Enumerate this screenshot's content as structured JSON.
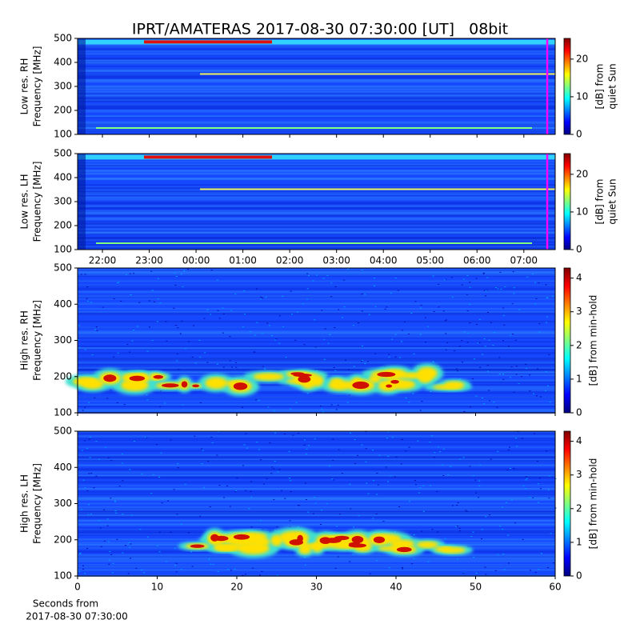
{
  "title": "IPRT/AMATERAS 2017-08-30 07:30:00 [UT]   08bit",
  "chart_data": [
    {
      "type": "heatmap",
      "ylabel": [
        "Low res. RH",
        "Frequency [MHz]"
      ],
      "xlim": [
        21.47,
        31.67
      ],
      "xticks": [
        22,
        23,
        24,
        25,
        26,
        27,
        28,
        29,
        30,
        31
      ],
      "show_xticklabels": false,
      "ylim": [
        100,
        500
      ],
      "yticks": [
        100,
        200,
        300,
        400,
        500
      ],
      "clim": [
        0,
        25.5
      ],
      "cticks": [
        0,
        10,
        20
      ],
      "clabel": [
        "[dB] from",
        "quiet Sun"
      ],
      "vline": {
        "x": 31.5,
        "color": "#ff00ff"
      }
    },
    {
      "type": "heatmap",
      "ylabel": [
        "Low res. LH",
        "Frequency [MHz]"
      ],
      "xlim": [
        21.47,
        31.67
      ],
      "xticks": [
        {
          "value": 22,
          "label": "22:00"
        },
        {
          "value": 23,
          "label": "23:00"
        },
        {
          "value": 24,
          "label": "00:00"
        },
        {
          "value": 25,
          "label": "01:00"
        },
        {
          "value": 26,
          "label": "02:00"
        },
        {
          "value": 27,
          "label": "03:00"
        },
        {
          "value": 28,
          "label": "04:00"
        },
        {
          "value": 29,
          "label": "05:00"
        },
        {
          "value": 30,
          "label": "06:00"
        },
        {
          "value": 31,
          "label": "07:00"
        }
      ],
      "show_xticklabels": true,
      "ylim": [
        100,
        500
      ],
      "yticks": [
        100,
        200,
        300,
        400,
        500
      ],
      "clim": [
        0,
        25.5
      ],
      "cticks": [
        0,
        10,
        20
      ],
      "clabel": [
        "[dB] from",
        "quiet Sun"
      ],
      "vline": {
        "x": 31.5,
        "color": "#ff00ff"
      }
    },
    {
      "type": "heatmap",
      "ylabel": [
        "High res. RH",
        "Frequency [MHz]"
      ],
      "xlim": [
        0,
        60
      ],
      "xticks": [
        0,
        10,
        20,
        30,
        40,
        50,
        60
      ],
      "show_xticklabels": false,
      "ylim": [
        100,
        500
      ],
      "yticks": [
        100,
        200,
        300,
        400,
        500
      ],
      "clim": [
        0,
        4.3
      ],
      "cticks": [
        0,
        1,
        2,
        3,
        4
      ],
      "clabel": [
        "[dB] from min-hold"
      ]
    },
    {
      "type": "heatmap",
      "ylabel": [
        "High res. LH",
        "Frequency [MHz]"
      ],
      "xlim": [
        0,
        60
      ],
      "xticks": [
        0,
        10,
        20,
        30,
        40,
        50,
        60
      ],
      "show_xticklabels": true,
      "ylim": [
        100,
        500
      ],
      "yticks": [
        100,
        200,
        300,
        400,
        500
      ],
      "clim": [
        0,
        4.3
      ],
      "cticks": [
        0,
        1,
        2,
        3,
        4
      ],
      "clabel": [
        "[dB] from min-hold"
      ],
      "xlabel": [
        "Seconds from",
        "2017-08-30 07:30:00"
      ]
    }
  ]
}
